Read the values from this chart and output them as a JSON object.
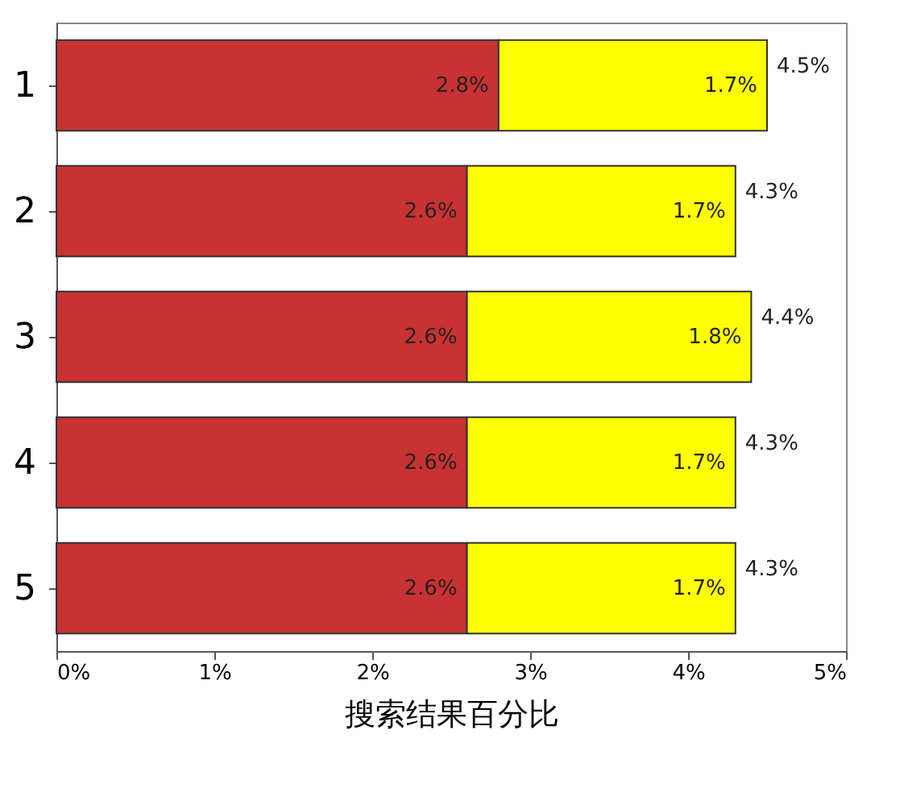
{
  "chart_data": {
    "type": "bar",
    "orientation": "horizontal",
    "stacked": true,
    "xlabel": "搜索结果百分比",
    "categories": [
      "1",
      "2",
      "3",
      "4",
      "5"
    ],
    "series": [
      {
        "color": "#c83232",
        "values": [
          2.8,
          2.6,
          2.6,
          2.6,
          2.6
        ],
        "value_labels": [
          "2.8%",
          "2.6%",
          "2.6%",
          "2.6%",
          "2.6%"
        ]
      },
      {
        "color": "#ffff00",
        "values": [
          1.7,
          1.7,
          1.8,
          1.7,
          1.7
        ],
        "value_labels": [
          "1.7%",
          "1.7%",
          "1.8%",
          "1.7%",
          "1.7%"
        ]
      }
    ],
    "totals": [
      "4.5%",
      "4.3%",
      "4.4%",
      "4.3%",
      "4.3%"
    ],
    "xlim": [
      0,
      5
    ],
    "xticks": [
      {
        "value": 0,
        "label": "0%"
      },
      {
        "value": 1,
        "label": "1%"
      },
      {
        "value": 2,
        "label": "2%"
      },
      {
        "value": 3,
        "label": "3%"
      },
      {
        "value": 4,
        "label": "4%"
      },
      {
        "value": 5,
        "label": "5%"
      }
    ]
  }
}
